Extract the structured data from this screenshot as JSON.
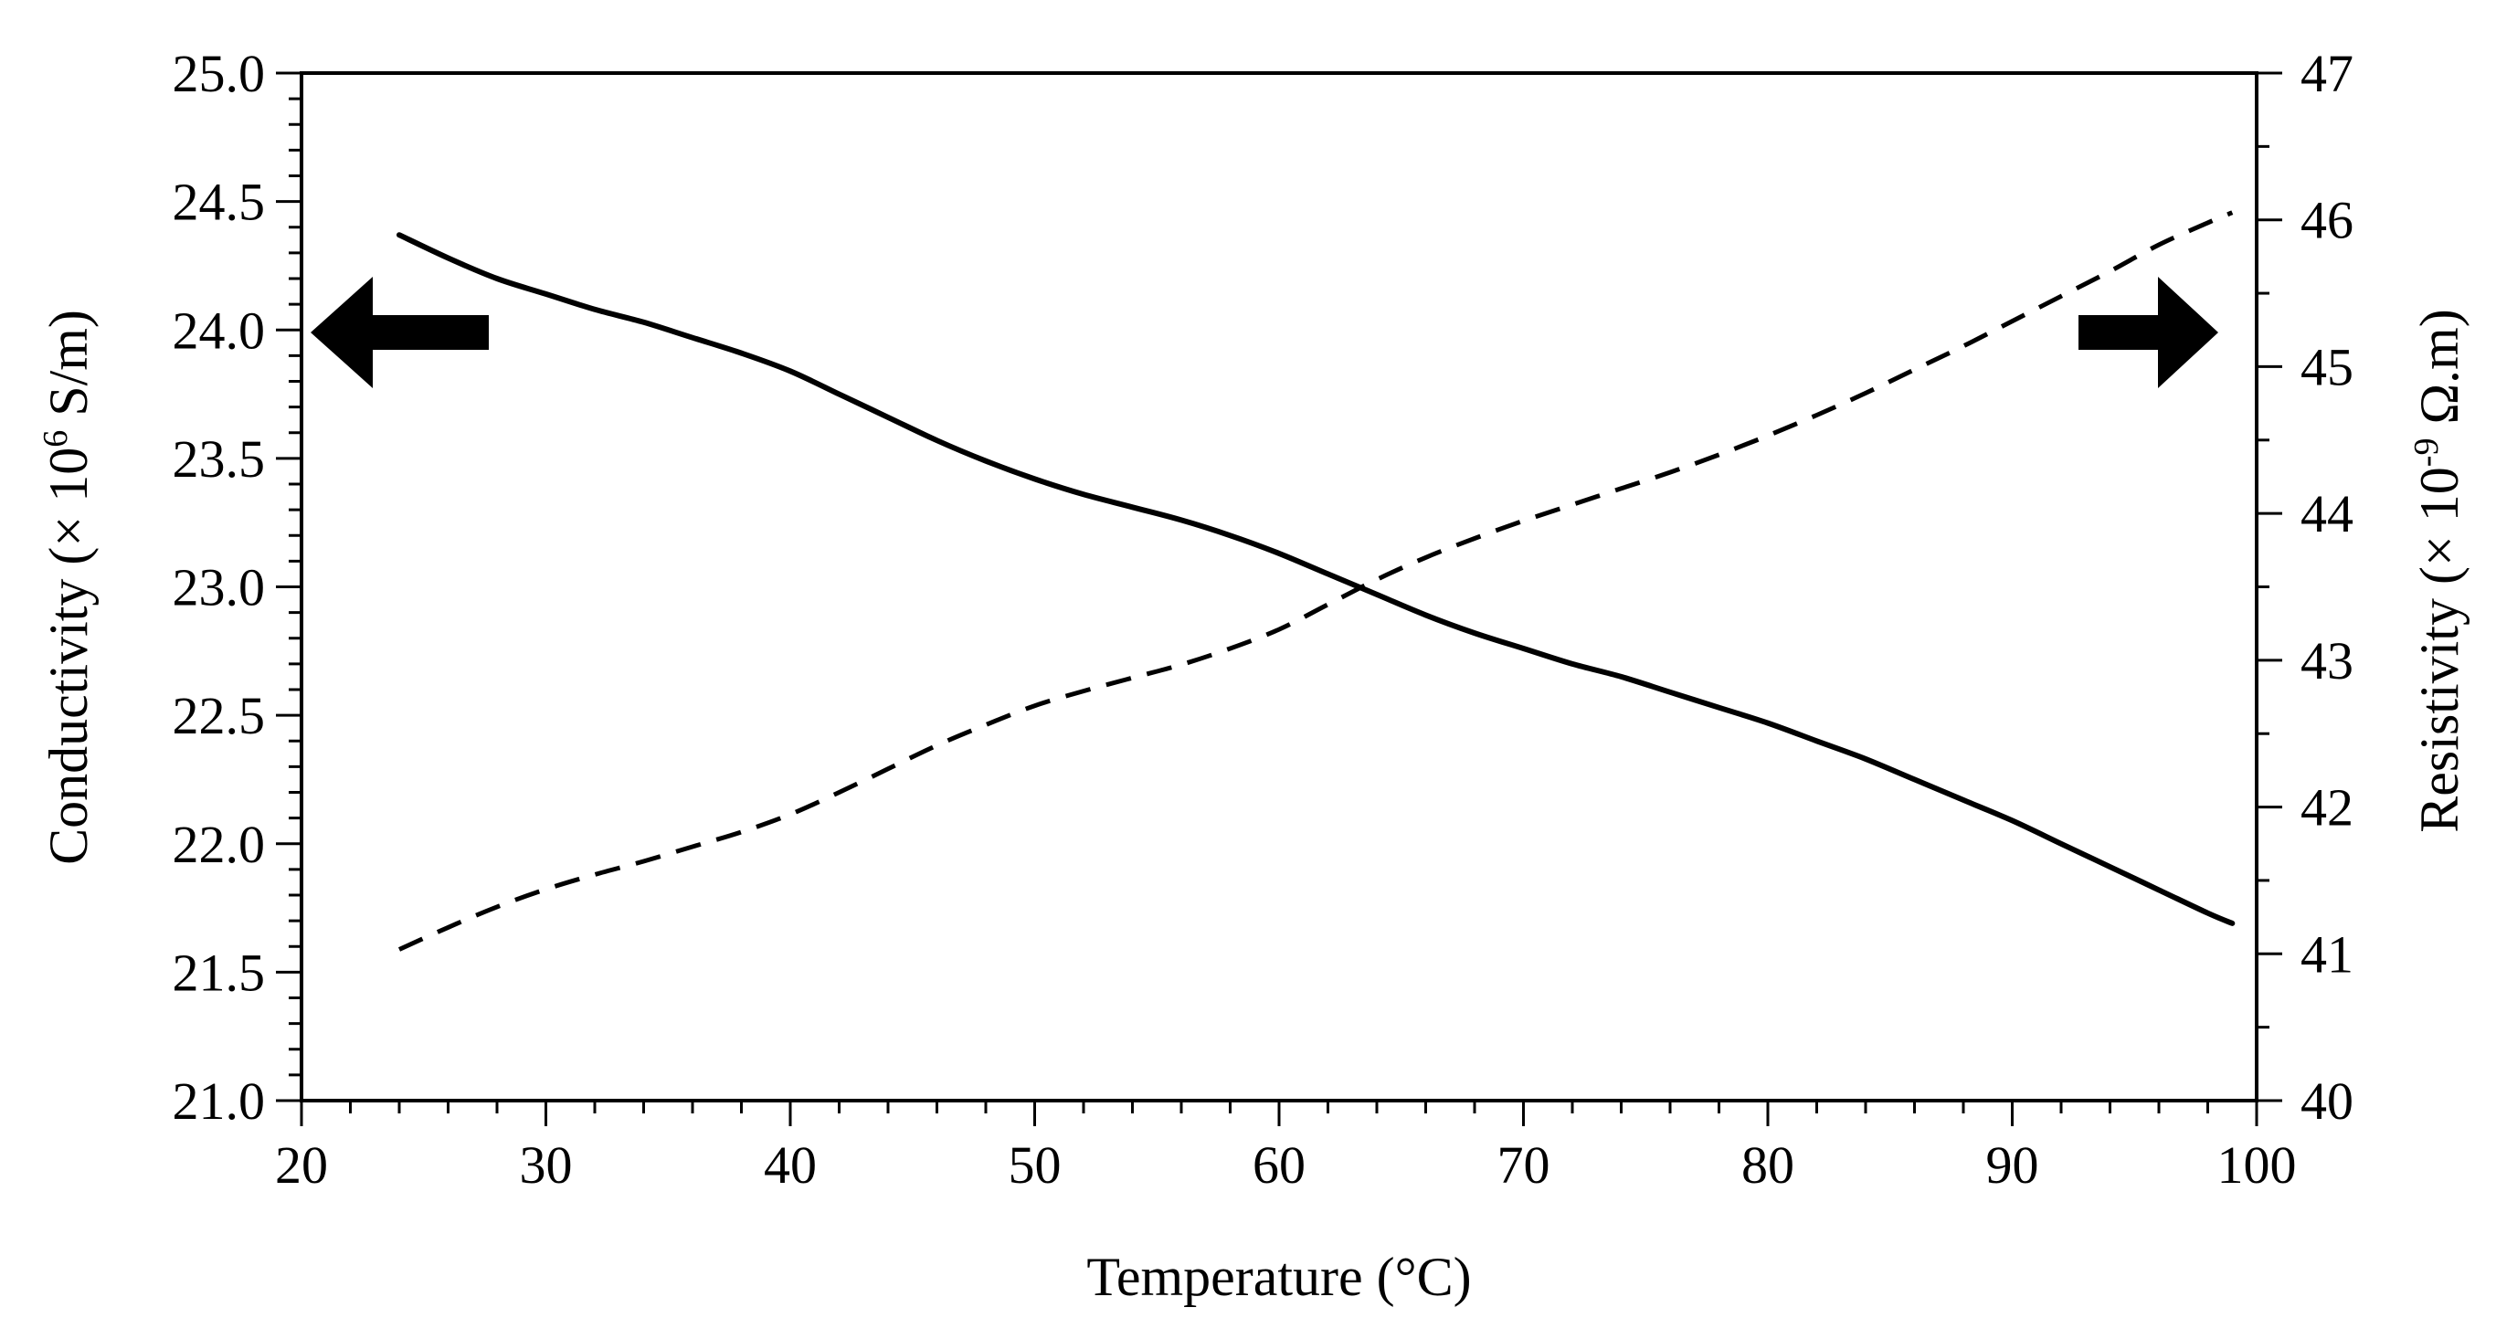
{
  "chart_data": {
    "type": "line",
    "x": [
      24,
      26,
      28,
      30,
      32,
      34,
      36,
      38,
      40,
      42,
      44,
      46,
      48,
      50,
      52,
      54,
      56,
      58,
      60,
      62,
      64,
      66,
      68,
      70,
      72,
      74,
      76,
      78,
      80,
      82,
      84,
      86,
      88,
      90,
      92,
      94,
      96,
      98,
      99
    ],
    "series": [
      {
        "name": "Conductivity",
        "axis": "left",
        "style": "solid",
        "values": [
          24.37,
          24.28,
          24.2,
          24.14,
          24.08,
          24.03,
          23.97,
          23.91,
          23.84,
          23.75,
          23.66,
          23.57,
          23.49,
          23.42,
          23.36,
          23.31,
          23.26,
          23.2,
          23.13,
          23.05,
          22.97,
          22.89,
          22.82,
          22.76,
          22.7,
          22.65,
          22.59,
          22.53,
          22.47,
          22.4,
          22.33,
          22.25,
          22.17,
          22.09,
          22.0,
          21.91,
          21.82,
          21.73,
          21.69
        ]
      },
      {
        "name": "Resistivity",
        "axis": "right",
        "style": "dashed",
        "values": [
          41.03,
          41.18,
          41.32,
          41.44,
          41.54,
          41.63,
          41.73,
          41.83,
          41.95,
          42.1,
          42.26,
          42.42,
          42.56,
          42.69,
          42.79,
          42.88,
          42.97,
          43.08,
          43.21,
          43.38,
          43.55,
          43.7,
          43.83,
          43.95,
          44.06,
          44.17,
          44.28,
          44.4,
          44.53,
          44.67,
          44.82,
          44.98,
          45.14,
          45.31,
          45.48,
          45.65,
          45.83,
          45.98,
          46.05
        ]
      }
    ],
    "xlabel": "Temperature (°C)",
    "xlim": [
      20,
      100
    ],
    "xticks": [
      "20",
      "30",
      "40",
      "50",
      "60",
      "70",
      "80",
      "90",
      "100"
    ],
    "ylabel_left": {
      "main": "Conductivity  (× 10",
      "exponent": "6",
      "unit": " S/m)"
    },
    "ylim_left": [
      21.0,
      25.0
    ],
    "yticks_left": [
      "21.0",
      "21.5",
      "22.0",
      "22.5",
      "23.0",
      "23.5",
      "24.0",
      "24.5",
      "25.0"
    ],
    "ylabel_right": {
      "main": "Resistivity  (× 10",
      "exponent": "-9",
      "unit": " Ω.m)"
    },
    "ylim_right": [
      40,
      47
    ],
    "yticks_right": [
      "40",
      "41",
      "42",
      "43",
      "44",
      "45",
      "46",
      "47"
    ],
    "annotations": [
      {
        "type": "arrow",
        "direction": "left",
        "meaning": "Conductivity curve uses left axis"
      },
      {
        "type": "arrow",
        "direction": "right",
        "meaning": "Resistivity curve uses right axis"
      }
    ],
    "grid": false
  }
}
